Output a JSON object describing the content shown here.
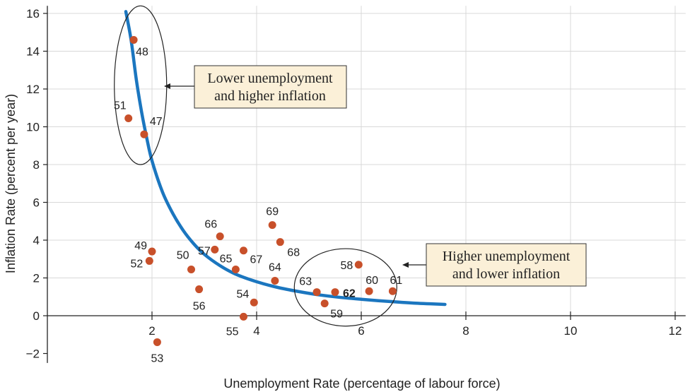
{
  "chart_data": {
    "type": "scatter",
    "xlabel": "Unemployment Rate (percentage of labour force)",
    "ylabel": "Inflation Rate (percent per year)",
    "xlim": [
      0,
      12.2
    ],
    "ylim": [
      -2.5,
      16.4
    ],
    "xticks": [
      2,
      4,
      6,
      8,
      10,
      12
    ],
    "yticks": [
      -2,
      0,
      2,
      4,
      6,
      8,
      10,
      12,
      14,
      16
    ],
    "xtick_labels": [
      "2",
      "4",
      "6",
      "8",
      "10",
      "12"
    ],
    "ytick_labels": [
      "−2",
      "0",
      "2",
      "4",
      "6",
      "8",
      "10",
      "12",
      "14",
      "16"
    ],
    "grid": true,
    "points": [
      {
        "label": "47",
        "x": 1.85,
        "y": 9.6
      },
      {
        "label": "48",
        "x": 1.65,
        "y": 14.6
      },
      {
        "label": "49",
        "x": 2.0,
        "y": 3.4
      },
      {
        "label": "50",
        "x": 2.75,
        "y": 2.45
      },
      {
        "label": "51",
        "x": 1.55,
        "y": 10.45
      },
      {
        "label": "52",
        "x": 1.95,
        "y": 2.9
      },
      {
        "label": "53",
        "x": 2.1,
        "y": -1.4
      },
      {
        "label": "54",
        "x": 3.95,
        "y": 0.7
      },
      {
        "label": "55",
        "x": 3.75,
        "y": -0.05
      },
      {
        "label": "56",
        "x": 2.9,
        "y": 1.4
      },
      {
        "label": "57",
        "x": 3.2,
        "y": 3.5
      },
      {
        "label": "58",
        "x": 5.95,
        "y": 2.7
      },
      {
        "label": "59",
        "x": 5.3,
        "y": 0.65
      },
      {
        "label": "60",
        "x": 6.15,
        "y": 1.3
      },
      {
        "label": "61",
        "x": 6.6,
        "y": 1.3
      },
      {
        "label": "62",
        "x": 5.5,
        "y": 1.25
      },
      {
        "label": "63",
        "x": 5.15,
        "y": 1.25
      },
      {
        "label": "64",
        "x": 4.35,
        "y": 1.85
      },
      {
        "label": "65",
        "x": 3.6,
        "y": 2.45
      },
      {
        "label": "66",
        "x": 3.3,
        "y": 4.2
      },
      {
        "label": "67",
        "x": 3.75,
        "y": 3.45
      },
      {
        "label": "68",
        "x": 4.45,
        "y": 3.9
      },
      {
        "label": "69",
        "x": 4.3,
        "y": 4.8
      }
    ],
    "curve": {
      "name": "",
      "x": [
        1.5,
        1.6,
        1.7,
        1.8,
        1.9,
        2.0,
        2.2,
        2.4,
        2.6,
        2.8,
        3.0,
        3.3,
        3.6,
        4.0,
        4.4,
        4.8,
        5.2,
        5.6,
        6.0,
        6.5,
        7.0,
        7.6
      ],
      "y": [
        16.1,
        14.6,
        12.5,
        10.8,
        9.4,
        8.2,
        6.55,
        5.4,
        4.5,
        3.8,
        3.25,
        2.65,
        2.2,
        1.8,
        1.5,
        1.28,
        1.1,
        0.97,
        0.87,
        0.76,
        0.67,
        0.6
      ]
    },
    "ellipses": [
      {
        "name": "high-inflation-cluster",
        "cx": 1.78,
        "cy": 12.2,
        "rx": 0.5,
        "ry": 4.2
      },
      {
        "name": "low-inflation-cluster",
        "cx": 5.7,
        "cy": 1.5,
        "rx": 0.98,
        "ry": 2.05
      }
    ],
    "annotations": [
      {
        "lines": [
          "Lower unemployment",
          "and higher inflation"
        ],
        "arrow_to": "high-inflation-cluster"
      },
      {
        "lines": [
          "Higher unemployment",
          "and lower inflation"
        ],
        "arrow_to": "low-inflation-cluster"
      }
    ],
    "colors": {
      "curve": "#1b76bf",
      "points": "#c8502a",
      "annotation_fill": "#fbf0d8"
    }
  }
}
